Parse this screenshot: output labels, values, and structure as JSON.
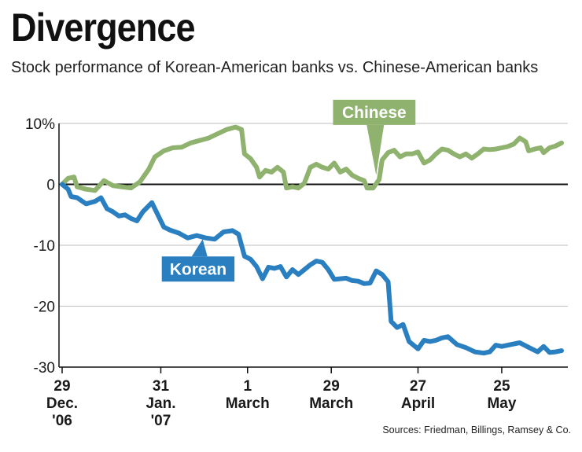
{
  "title": "Divergence",
  "subtitle": "Stock performance of Korean-American banks vs. Chinese-American banks",
  "source": "Sources: Friedman, Billings, Ramsey & Co.",
  "chart_data": {
    "type": "line",
    "ylim": [
      -30,
      10
    ],
    "y_ticks": [
      {
        "value": 10,
        "label": "10%"
      },
      {
        "value": 0,
        "label": "0"
      },
      {
        "value": -10,
        "label": "-10"
      },
      {
        "value": -20,
        "label": "-20"
      },
      {
        "value": -30,
        "label": "-30"
      }
    ],
    "x_ticks": [
      {
        "x": "2006-12-29",
        "lines": [
          "29",
          "Dec.",
          "'06"
        ]
      },
      {
        "x": "2007-01-31",
        "lines": [
          "31",
          "Jan.",
          "'07"
        ]
      },
      {
        "x": "2007-03-01",
        "lines": [
          "1",
          "March"
        ]
      },
      {
        "x": "2007-03-29",
        "lines": [
          "29",
          "March"
        ]
      },
      {
        "x": "2007-04-27",
        "lines": [
          "27",
          "April"
        ]
      },
      {
        "x": "2007-05-25",
        "lines": [
          "25",
          "May"
        ]
      }
    ],
    "x_range": [
      "2006-12-29",
      "2007-06-14"
    ],
    "grid": true,
    "series": [
      {
        "name": "Chinese",
        "color": "#8fb26e",
        "points": [
          [
            "2006-12-29",
            0.0
          ],
          [
            "2006-12-31",
            1.0
          ],
          [
            "2007-01-02",
            1.2
          ],
          [
            "2007-01-03",
            -0.4
          ],
          [
            "2007-01-06",
            -0.8
          ],
          [
            "2007-01-09",
            -1.0
          ],
          [
            "2007-01-12",
            0.6
          ],
          [
            "2007-01-15",
            -0.2
          ],
          [
            "2007-01-18",
            -0.4
          ],
          [
            "2007-01-21",
            -0.6
          ],
          [
            "2007-01-24",
            0.4
          ],
          [
            "2007-01-27",
            2.5
          ],
          [
            "2007-01-29",
            4.5
          ],
          [
            "2007-02-01",
            5.5
          ],
          [
            "2007-02-04",
            6.0
          ],
          [
            "2007-02-07",
            6.1
          ],
          [
            "2007-02-10",
            6.8
          ],
          [
            "2007-02-13",
            7.2
          ],
          [
            "2007-02-16",
            7.6
          ],
          [
            "2007-02-19",
            8.3
          ],
          [
            "2007-02-22",
            9.0
          ],
          [
            "2007-02-25",
            9.4
          ],
          [
            "2007-02-27",
            9.0
          ],
          [
            "2007-02-28",
            5.0
          ],
          [
            "2007-03-02",
            4.2
          ],
          [
            "2007-03-04",
            2.8
          ],
          [
            "2007-03-05",
            1.2
          ],
          [
            "2007-03-07",
            2.3
          ],
          [
            "2007-03-09",
            2.0
          ],
          [
            "2007-03-11",
            2.8
          ],
          [
            "2007-03-13",
            2.0
          ],
          [
            "2007-03-14",
            -0.6
          ],
          [
            "2007-03-16",
            -0.4
          ],
          [
            "2007-03-18",
            -0.6
          ],
          [
            "2007-03-20",
            0.2
          ],
          [
            "2007-03-22",
            2.8
          ],
          [
            "2007-03-24",
            3.3
          ],
          [
            "2007-03-26",
            2.8
          ],
          [
            "2007-03-28",
            2.5
          ],
          [
            "2007-03-30",
            3.5
          ],
          [
            "2007-04-01",
            2.0
          ],
          [
            "2007-04-03",
            2.5
          ],
          [
            "2007-04-05",
            1.5
          ],
          [
            "2007-04-07",
            1.0
          ],
          [
            "2007-04-09",
            0.6
          ],
          [
            "2007-04-10",
            -0.6
          ],
          [
            "2007-04-12",
            -0.6
          ],
          [
            "2007-04-14",
            0.8
          ],
          [
            "2007-04-15",
            4.0
          ],
          [
            "2007-04-17",
            5.2
          ],
          [
            "2007-04-19",
            5.6
          ],
          [
            "2007-04-21",
            4.5
          ],
          [
            "2007-04-23",
            5.0
          ],
          [
            "2007-04-25",
            5.0
          ],
          [
            "2007-04-27",
            5.3
          ],
          [
            "2007-04-29",
            3.5
          ],
          [
            "2007-05-01",
            4.0
          ],
          [
            "2007-05-03",
            5.0
          ],
          [
            "2007-05-05",
            5.8
          ],
          [
            "2007-05-07",
            5.6
          ],
          [
            "2007-05-09",
            5.0
          ],
          [
            "2007-05-11",
            4.5
          ],
          [
            "2007-05-13",
            5.0
          ],
          [
            "2007-05-15",
            4.3
          ],
          [
            "2007-05-17",
            5.0
          ],
          [
            "2007-05-19",
            5.8
          ],
          [
            "2007-05-21",
            5.7
          ],
          [
            "2007-05-23",
            5.8
          ],
          [
            "2007-05-25",
            6.0
          ],
          [
            "2007-05-27",
            6.2
          ],
          [
            "2007-05-29",
            6.6
          ],
          [
            "2007-05-31",
            7.6
          ],
          [
            "2007-06-02",
            7.0
          ],
          [
            "2007-06-03",
            5.5
          ],
          [
            "2007-06-05",
            5.8
          ],
          [
            "2007-06-07",
            6.0
          ],
          [
            "2007-06-08",
            5.2
          ],
          [
            "2007-06-10",
            6.0
          ],
          [
            "2007-06-12",
            6.3
          ],
          [
            "2007-06-14",
            6.8
          ]
        ]
      },
      {
        "name": "Korean",
        "color": "#2a7fc1",
        "points": [
          [
            "2006-12-29",
            0.0
          ],
          [
            "2006-12-31",
            -0.8
          ],
          [
            "2007-01-01",
            -2.0
          ],
          [
            "2007-01-03",
            -2.2
          ],
          [
            "2007-01-06",
            -3.2
          ],
          [
            "2007-01-09",
            -2.8
          ],
          [
            "2007-01-11",
            -2.2
          ],
          [
            "2007-01-13",
            -4.0
          ],
          [
            "2007-01-15",
            -4.5
          ],
          [
            "2007-01-17",
            -5.2
          ],
          [
            "2007-01-19",
            -5.0
          ],
          [
            "2007-01-21",
            -5.6
          ],
          [
            "2007-01-23",
            -6.0
          ],
          [
            "2007-01-25",
            -4.5
          ],
          [
            "2007-01-27",
            -3.5
          ],
          [
            "2007-01-28",
            -3.0
          ],
          [
            "2007-01-30",
            -5.0
          ],
          [
            "2007-02-01",
            -7.0
          ],
          [
            "2007-02-03",
            -7.5
          ],
          [
            "2007-02-06",
            -8.0
          ],
          [
            "2007-02-09",
            -8.8
          ],
          [
            "2007-02-12",
            -8.4
          ],
          [
            "2007-02-15",
            -8.8
          ],
          [
            "2007-02-18",
            -9.0
          ],
          [
            "2007-02-21",
            -7.8
          ],
          [
            "2007-02-24",
            -7.6
          ],
          [
            "2007-02-26",
            -8.2
          ],
          [
            "2007-02-28",
            -11.8
          ],
          [
            "2007-03-02",
            -12.3
          ],
          [
            "2007-03-04",
            -13.5
          ],
          [
            "2007-03-06",
            -15.5
          ],
          [
            "2007-03-08",
            -13.6
          ],
          [
            "2007-03-10",
            -13.8
          ],
          [
            "2007-03-12",
            -13.5
          ],
          [
            "2007-03-14",
            -15.2
          ],
          [
            "2007-03-16",
            -14.0
          ],
          [
            "2007-03-18",
            -14.8
          ],
          [
            "2007-03-20",
            -14.0
          ],
          [
            "2007-03-22",
            -13.2
          ],
          [
            "2007-03-24",
            -12.6
          ],
          [
            "2007-03-26",
            -12.8
          ],
          [
            "2007-03-28",
            -14.0
          ],
          [
            "2007-03-30",
            -15.6
          ],
          [
            "2007-04-01",
            -15.5
          ],
          [
            "2007-04-03",
            -15.4
          ],
          [
            "2007-04-05",
            -15.8
          ],
          [
            "2007-04-07",
            -15.9
          ],
          [
            "2007-04-09",
            -16.3
          ],
          [
            "2007-04-11",
            -16.2
          ],
          [
            "2007-04-13",
            -14.2
          ],
          [
            "2007-04-15",
            -14.8
          ],
          [
            "2007-04-17",
            -16.0
          ],
          [
            "2007-04-18",
            -22.5
          ],
          [
            "2007-04-20",
            -23.5
          ],
          [
            "2007-04-22",
            -23.0
          ],
          [
            "2007-04-24",
            -25.8
          ],
          [
            "2007-04-27",
            -27.0
          ],
          [
            "2007-04-29",
            -25.6
          ],
          [
            "2007-05-01",
            -25.8
          ],
          [
            "2007-05-03",
            -25.6
          ],
          [
            "2007-05-05",
            -25.2
          ],
          [
            "2007-05-07",
            -25.0
          ],
          [
            "2007-05-10",
            -26.3
          ],
          [
            "2007-05-13",
            -26.8
          ],
          [
            "2007-05-16",
            -27.5
          ],
          [
            "2007-05-19",
            -27.7
          ],
          [
            "2007-05-21",
            -27.5
          ],
          [
            "2007-05-23",
            -26.4
          ],
          [
            "2007-05-25",
            -26.6
          ],
          [
            "2007-05-28",
            -26.3
          ],
          [
            "2007-05-31",
            -26.0
          ],
          [
            "2007-06-02",
            -26.5
          ],
          [
            "2007-06-04",
            -27.0
          ],
          [
            "2007-06-06",
            -27.5
          ],
          [
            "2007-06-08",
            -26.6
          ],
          [
            "2007-06-10",
            -27.6
          ],
          [
            "2007-06-12",
            -27.5
          ],
          [
            "2007-06-14",
            -27.3
          ]
        ]
      }
    ],
    "annotations": [
      {
        "series": "Chinese",
        "text": "Chinese",
        "pointer_x": "2007-04-13",
        "pointer_y": 1.5
      },
      {
        "series": "Korean",
        "text": "Korean",
        "pointer_x": "2007-02-14",
        "pointer_y": -9.0
      }
    ]
  }
}
